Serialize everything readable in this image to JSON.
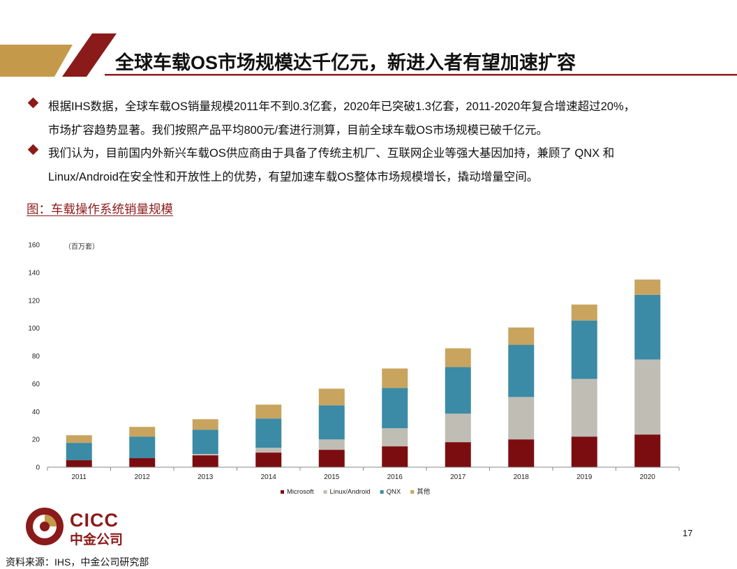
{
  "header": {
    "title": "全球车载OS市场规模达千亿元，新进入者有望加速扩容"
  },
  "bullets": [
    {
      "line1": "根据IHS数据，全球车载OS销量规模2011年不到0.3亿套，2020年已突破1.3亿套，2011-2020年复合增速超过20%，",
      "line2": "市场扩容趋势显著。我们按照产品平均800元/套进行测算，目前全球车载OS市场规模已破千亿元。"
    },
    {
      "line1": "我们认为，目前国内外新兴车载OS供应商由于具备了传统主机厂、互联网企业等强大基因加持，兼顾了 QNX 和",
      "line2": "Linux/Android在安全性和开放性上的优势，有望加速车载OS整体市场规模增长，撬动增量空间。"
    }
  ],
  "figure_title": "图：车载操作系统销量规模",
  "footer": {
    "logo_en": "CICC",
    "logo_cn": "中金公司",
    "page_number": "17",
    "source": "资料来源：IHS，中金公司研究部"
  },
  "colors": {
    "brand": "#8b1a1a",
    "gold": "#c49a4a"
  },
  "chart_data": {
    "type": "bar",
    "stacked": true,
    "unit_label": "（百万套）",
    "categories": [
      "2011",
      "2012",
      "2013",
      "2014",
      "2015",
      "2016",
      "2017",
      "2018",
      "2019",
      "2020"
    ],
    "ylim": [
      0,
      160
    ],
    "yticks": [
      0,
      20,
      40,
      60,
      80,
      100,
      120,
      140,
      160
    ],
    "series": [
      {
        "name": "Microsoft",
        "color": "#7b0d10",
        "values": [
          5,
          6.5,
          8.5,
          10.5,
          12.5,
          15,
          18,
          20,
          22,
          23.5
        ]
      },
      {
        "name": "Linux/Android",
        "color": "#bfbdb4",
        "values": [
          0,
          0,
          1,
          3.5,
          7.5,
          13,
          20.5,
          30.5,
          41.5,
          54
        ]
      },
      {
        "name": "QNX",
        "color": "#3b8aa6",
        "values": [
          12.5,
          15.5,
          17.5,
          21,
          24.5,
          29,
          33.5,
          37.5,
          42,
          46.5
        ]
      },
      {
        "name": "其他",
        "color": "#c9a45f",
        "values": [
          5.5,
          7,
          7.5,
          10,
          12,
          14,
          13.5,
          12.5,
          11.5,
          11
        ]
      }
    ],
    "legend_position": "bottom",
    "grid": false
  }
}
